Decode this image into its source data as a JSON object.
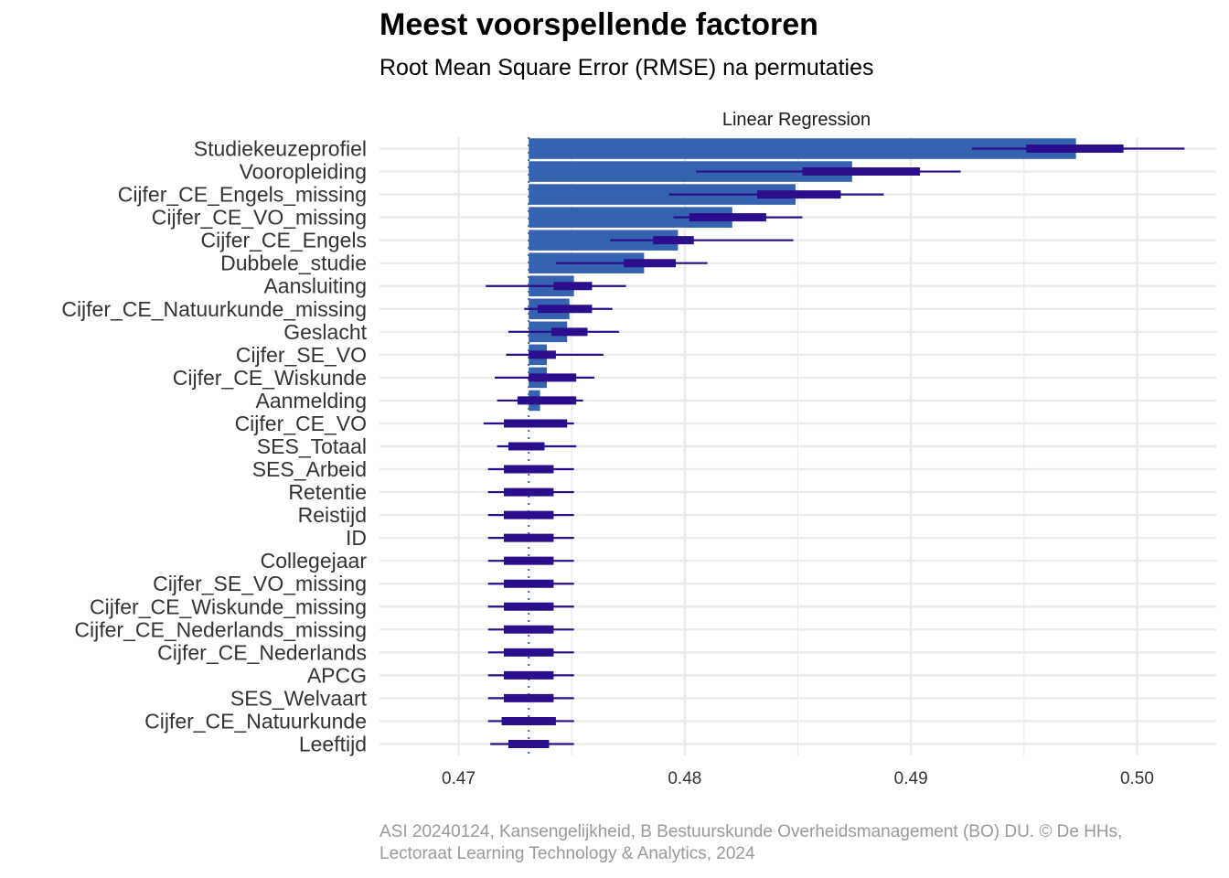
{
  "chart_data": {
    "type": "bar",
    "title": "Meest voorspellende factoren",
    "subtitle": "Root Mean Square Error (RMSE) na permutaties",
    "facet_label": "Linear Regression",
    "caption_line1": "ASI 20240124, Kansengelijkheid, B Bestuurskunde Overheidsmanagement (BO) DU. © De HHs,",
    "caption_line2": "Lectoraat Learning Technology & Analytics, 2024",
    "xlim": [
      0.4665,
      0.5035
    ],
    "x_ticks": [
      0.47,
      0.48,
      0.49,
      0.5
    ],
    "x_tick_labels": [
      "0.47",
      "0.48",
      "0.49",
      "0.50"
    ],
    "baseline": 0.4731,
    "orientation": "horizontal",
    "grid": true,
    "colors": {
      "bar": "#3563b0",
      "range": "#2a0e8c",
      "grid": "#ebebeb",
      "baseline": "#3563b0"
    },
    "categories": [
      "Studiekeuzeprofiel",
      "Vooropleiding",
      "Cijfer_CE_Engels_missing",
      "Cijfer_CE_VO_missing",
      "Cijfer_CE_Engels",
      "Dubbele_studie",
      "Aansluiting",
      "Cijfer_CE_Natuurkunde_missing",
      "Geslacht",
      "Cijfer_SE_VO",
      "Cijfer_CE_Wiskunde",
      "Aanmelding",
      "Cijfer_CE_VO",
      "SES_Totaal",
      "SES_Arbeid",
      "Retentie",
      "Reistijd",
      "ID",
      "Collegejaar",
      "Cijfer_SE_VO_missing",
      "Cijfer_CE_Wiskunde_missing",
      "Cijfer_CE_Nederlands_missing",
      "Cijfer_CE_Nederlands",
      "APCG",
      "SES_Welvaart",
      "Cijfer_CE_Natuurkunde",
      "Leeftijd"
    ],
    "values": [
      0.4973,
      0.4874,
      0.4849,
      0.4821,
      0.4797,
      0.4782,
      0.4751,
      0.4749,
      0.4748,
      0.4739,
      0.4739,
      0.4736,
      0.4731,
      0.4731,
      0.4731,
      0.4731,
      0.4731,
      0.4731,
      0.4731,
      0.4731,
      0.4731,
      0.4731,
      0.4731,
      0.4731,
      0.4731,
      0.4731,
      0.4731
    ],
    "range_min": [
      0.4927,
      0.4805,
      0.4793,
      0.4795,
      0.4767,
      0.4743,
      0.4712,
      0.4729,
      0.4722,
      0.4721,
      0.4716,
      0.4717,
      0.4711,
      0.4717,
      0.4713,
      0.4713,
      0.4713,
      0.4713,
      0.4713,
      0.4713,
      0.4713,
      0.4713,
      0.4713,
      0.4713,
      0.4713,
      0.4713,
      0.4714
    ],
    "range_max": [
      0.5021,
      0.4922,
      0.4888,
      0.4852,
      0.4848,
      0.481,
      0.4774,
      0.4768,
      0.4771,
      0.4764,
      0.476,
      0.4755,
      0.4751,
      0.4752,
      0.4751,
      0.4751,
      0.4751,
      0.4751,
      0.4751,
      0.4751,
      0.4751,
      0.4751,
      0.4751,
      0.4751,
      0.4751,
      0.4751,
      0.4751
    ],
    "iqr_low": [
      0.4951,
      0.4852,
      0.4832,
      0.4802,
      0.4786,
      0.4773,
      0.4742,
      0.4735,
      0.4741,
      0.4731,
      0.4731,
      0.4726,
      0.472,
      0.4722,
      0.472,
      0.472,
      0.472,
      0.472,
      0.472,
      0.472,
      0.472,
      0.472,
      0.472,
      0.472,
      0.472,
      0.4719,
      0.4722
    ],
    "iqr_high": [
      0.4994,
      0.4904,
      0.4869,
      0.4836,
      0.4804,
      0.4796,
      0.4759,
      0.4759,
      0.4757,
      0.4743,
      0.4752,
      0.4752,
      0.4748,
      0.4738,
      0.4742,
      0.4742,
      0.4742,
      0.4742,
      0.4742,
      0.4742,
      0.4742,
      0.4742,
      0.4742,
      0.4742,
      0.4742,
      0.4743,
      0.474
    ]
  }
}
